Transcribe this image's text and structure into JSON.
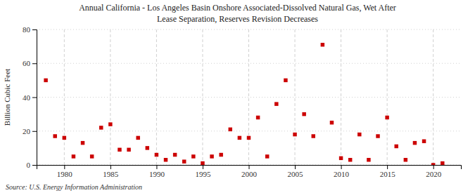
{
  "chart_data": {
    "type": "scatter",
    "title": "Annual California - Los Angeles Basin Onshore Associated-Dissolved Natural Gas, Wet After",
    "subtitle": "Lease Separation, Reserves Revision Decreases",
    "ylabel": "Billion Cubic Feet",
    "source": "Source: U.S. Energy Information Administration",
    "x": [
      1978,
      1979,
      1980,
      1981,
      1982,
      1983,
      1984,
      1985,
      1986,
      1987,
      1988,
      1989,
      1990,
      1991,
      1992,
      1993,
      1994,
      1995,
      1996,
      1997,
      1998,
      1999,
      2000,
      2001,
      2002,
      2003,
      2004,
      2005,
      2006,
      2007,
      2008,
      2009,
      2010,
      2011,
      2012,
      2013,
      2014,
      2015,
      2016,
      2017,
      2018,
      2019,
      2020,
      2021
    ],
    "values": [
      50,
      17,
      16,
      5,
      13,
      5,
      22,
      24,
      9,
      9,
      16,
      10,
      6,
      3,
      6,
      2,
      5,
      1,
      5,
      6,
      21,
      16,
      16,
      28,
      5,
      36,
      50,
      18,
      30,
      17,
      71,
      25,
      4,
      3,
      18,
      3,
      17,
      28,
      11,
      3,
      13,
      14,
      0,
      1
    ],
    "color": "#cc0000",
    "marker": "square",
    "xlim": [
      1977,
      2023
    ],
    "ylim": [
      0,
      80
    ],
    "xticks": [
      1980,
      1985,
      1990,
      1995,
      2000,
      2005,
      2010,
      2015,
      2020
    ],
    "yticks": [
      0,
      20,
      40,
      60,
      80
    ],
    "grid": true
  }
}
